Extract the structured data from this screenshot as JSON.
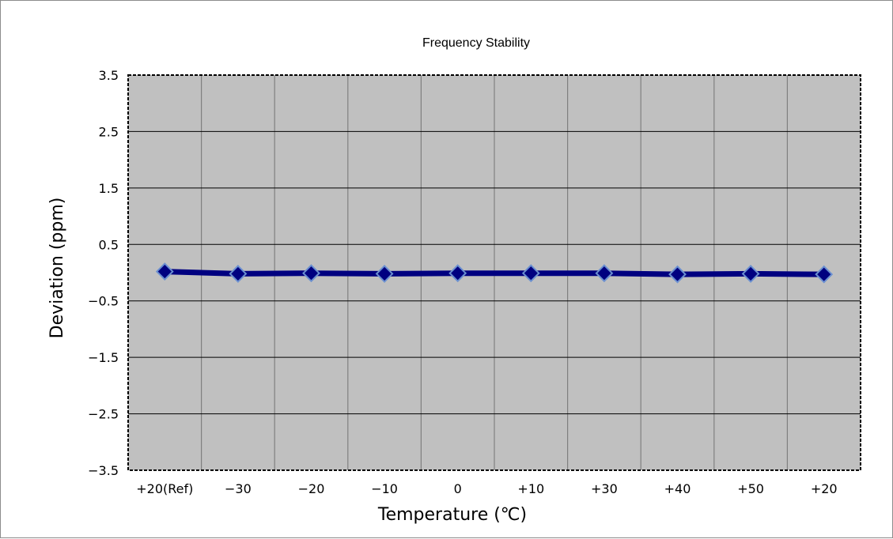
{
  "chart_data": {
    "type": "line",
    "title": "Frequency Stability",
    "xlabel": "Temperature (℃)",
    "ylabel": "Deviation (ppm)",
    "categories": [
      "+20(Ref)",
      "−30",
      "−20",
      "−10",
      "0",
      "+10",
      "+30",
      "+40",
      "+50",
      "+20"
    ],
    "series": [
      {
        "values": [
          0.02,
          -0.02,
          -0.01,
          -0.02,
          -0.01,
          -0.01,
          -0.01,
          -0.03,
          -0.02,
          -0.03
        ]
      }
    ],
    "y_ticks": [
      "3.5",
      "2.5",
      "1.5",
      "0.5",
      "−0.5",
      "−1.5",
      "−2.5",
      "−3.5"
    ],
    "ylim": [
      -3.5,
      3.5
    ],
    "grid": true,
    "legend": "none",
    "colors": {
      "plot_background": "#c0c0c0",
      "line": "#000080",
      "marker_fill": "#000080",
      "marker_edge": "#6a8fd0",
      "gridline_horizontal": "#000000",
      "gridline_vertical": "#808080"
    }
  }
}
